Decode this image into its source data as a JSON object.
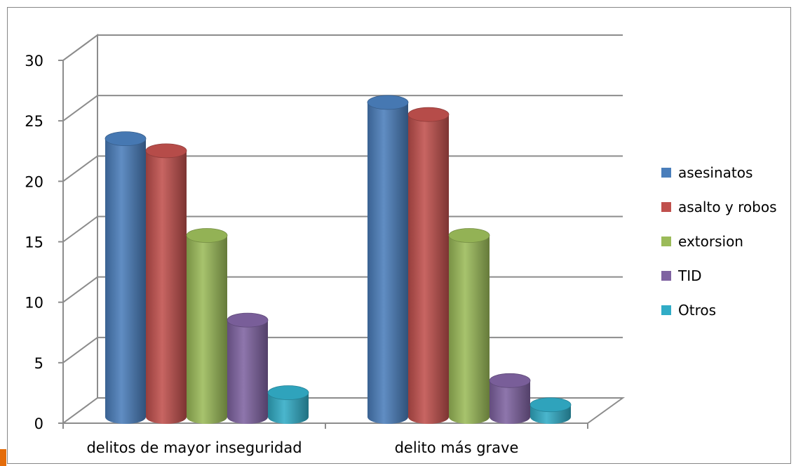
{
  "chart_data": {
    "type": "bar",
    "title": "",
    "xlabel": "",
    "ylabel": "",
    "categories": [
      "delitos de mayor inseguridad",
      "delito más grave"
    ],
    "series": [
      {
        "name": "asesinatos",
        "values": [
          23,
          26
        ]
      },
      {
        "name": "asalto y robos",
        "values": [
          22,
          25
        ]
      },
      {
        "name": "extorsion",
        "values": [
          15,
          15
        ]
      },
      {
        "name": "TID",
        "values": [
          8,
          3
        ]
      },
      {
        "name": "Otros",
        "values": [
          2,
          1
        ]
      }
    ],
    "ylim": [
      0,
      30
    ],
    "yticks": [
      0,
      5,
      10,
      15,
      20,
      25,
      30
    ],
    "grid": true,
    "legend_position": "right",
    "three_d": true,
    "bar_shape": "cylinder",
    "colors": [
      "#4a7ebb",
      "#c0504d",
      "#9bbb59",
      "#7f63a1",
      "#31acc6"
    ]
  }
}
